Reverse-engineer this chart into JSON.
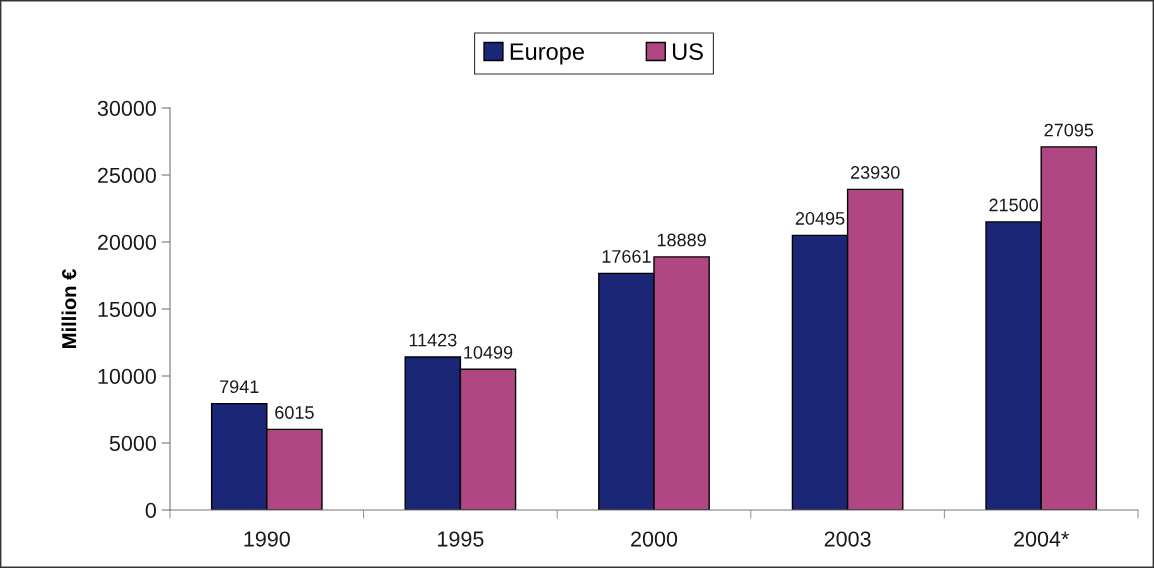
{
  "chart_data": {
    "type": "bar",
    "ylabel": "Million €",
    "categories": [
      "1990",
      "1995",
      "2000",
      "2003",
      "2004*"
    ],
    "series": [
      {
        "name": "Europe",
        "color": "#1c2677",
        "values": [
          7941,
          11423,
          17661,
          20495,
          21500
        ]
      },
      {
        "name": "US",
        "color": "#b04783",
        "values": [
          6015,
          10499,
          18889,
          23930,
          27095
        ]
      }
    ],
    "ylim": [
      0,
      30000
    ],
    "yticks": [
      0,
      5000,
      10000,
      15000,
      20000,
      25000,
      30000
    ],
    "data_labels": true,
    "grid": false,
    "legend": "top"
  }
}
